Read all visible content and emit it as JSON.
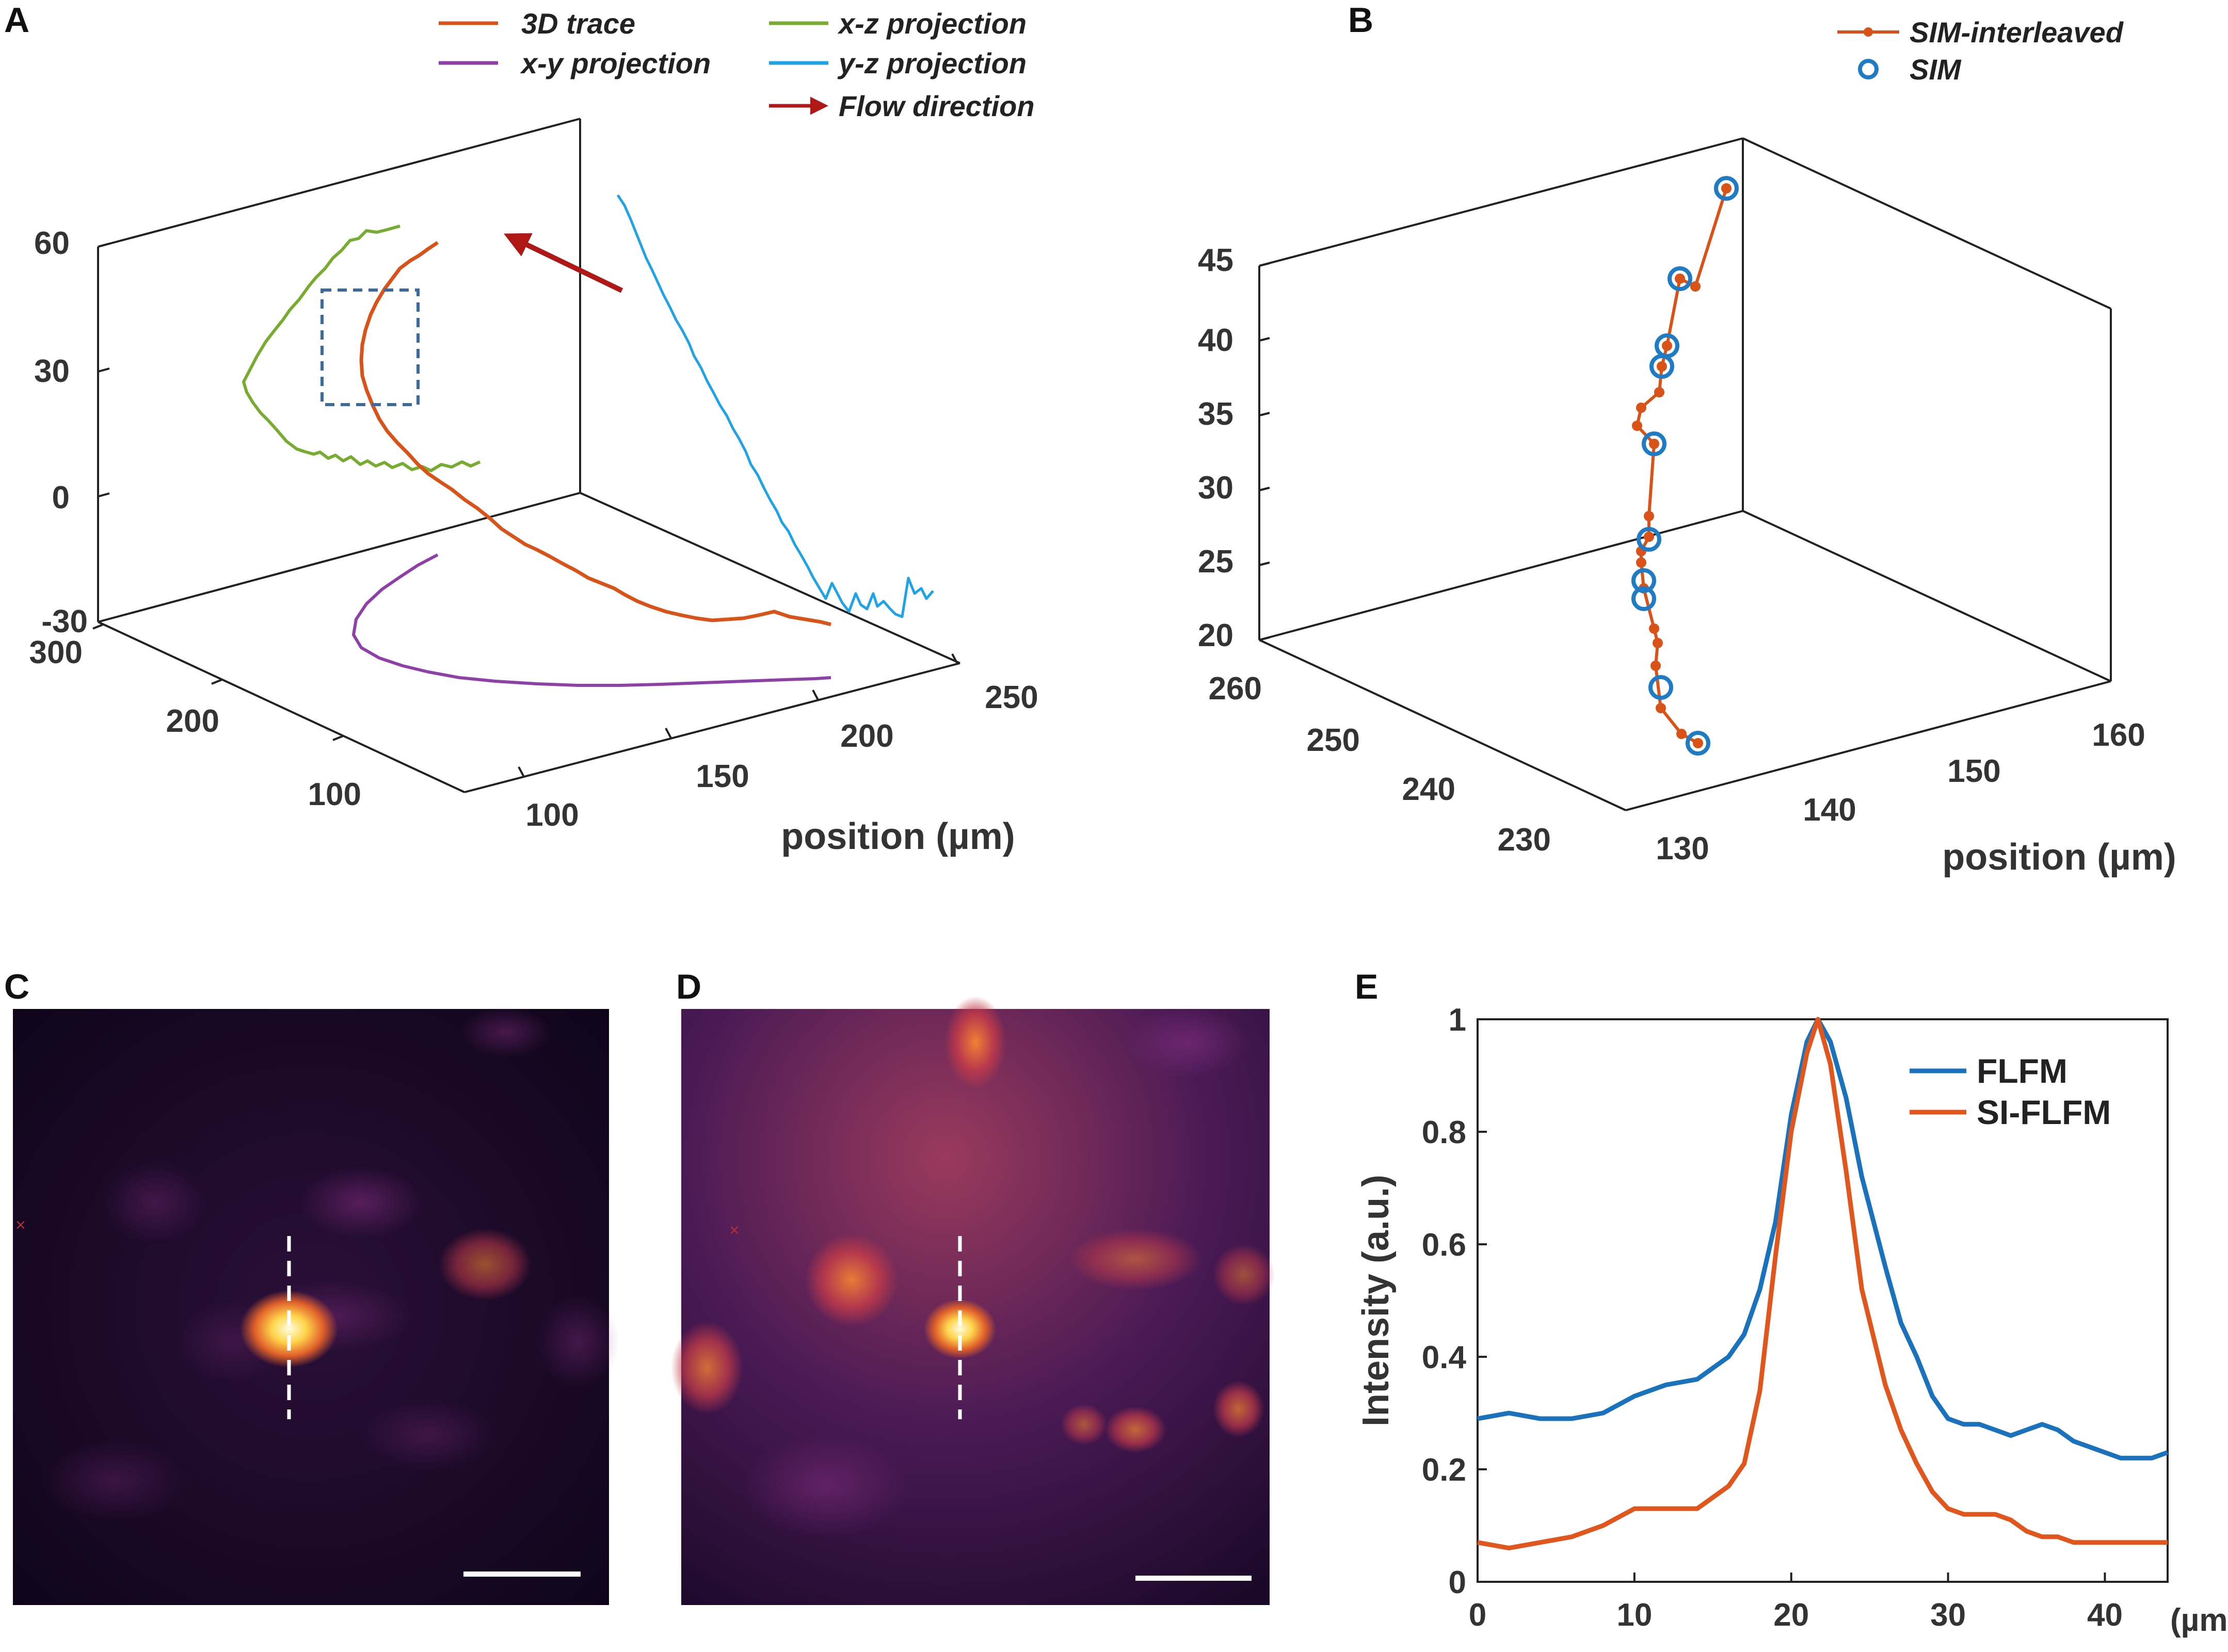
{
  "colors": {
    "trace3d": "#d95319",
    "xy": "#8e3fa8",
    "xz": "#77ac30",
    "yz": "#1ea3e6",
    "arrow": "#b01818",
    "sim_marker": "#1f7cc4",
    "flfm": "#1a72bd",
    "siflfm": "#e0561c",
    "roi_box": "#3a6aa0",
    "crosshair": "#ffffff"
  },
  "panels": {
    "a": {
      "letter": "A"
    },
    "b": {
      "letter": "B"
    },
    "c": {
      "letter": "C"
    },
    "d": {
      "letter": "D"
    },
    "e": {
      "letter": "E"
    }
  },
  "legend_a": {
    "trace3d": "3D trace",
    "xy": "x-y projection",
    "xz": "x-z projection",
    "yz": "y-z projection",
    "flow": "Flow direction"
  },
  "legend_b": {
    "sim_interleaved": "SIM-interleaved",
    "sim": "SIM"
  },
  "chart_data": [
    {
      "id": "A",
      "type": "line",
      "title": "",
      "zlabel": "",
      "xlabel": "position (µm)",
      "z_ticks": [
        "60",
        "30",
        "0",
        "-30"
      ],
      "depth_ticks": [
        "300",
        "200",
        "100"
      ],
      "x_ticks": [
        "100",
        "150",
        "200",
        "250"
      ],
      "zlim": [
        -30,
        60
      ],
      "series": [
        {
          "name": "3D trace"
        },
        {
          "name": "x-y projection"
        },
        {
          "name": "x-z projection"
        },
        {
          "name": "y-z projection"
        }
      ],
      "annotations": [
        "Flow direction"
      ]
    },
    {
      "id": "B",
      "type": "line",
      "xlabel": "position (µm)",
      "z_ticks": [
        "45",
        "40",
        "35",
        "30",
        "25",
        "20"
      ],
      "depth_ticks": [
        "260",
        "250",
        "240",
        "230"
      ],
      "x_ticks": [
        "130",
        "140",
        "150",
        "160"
      ],
      "zlim": [
        20,
        45
      ],
      "series": [
        {
          "name": "SIM-interleaved"
        },
        {
          "name": "SIM"
        }
      ]
    },
    {
      "id": "E",
      "type": "line",
      "xlabel": "(µm)",
      "ylabel": "Intensity (a.u.)",
      "x_ticks": [
        "0",
        "10",
        "20",
        "30",
        "40"
      ],
      "y_ticks": [
        "0",
        "0.2",
        "0.4",
        "0.6",
        "0.8",
        "1"
      ],
      "xlim": [
        0,
        44
      ],
      "ylim": [
        0,
        1
      ],
      "x": [
        0,
        2,
        4,
        6,
        8,
        10,
        12,
        14,
        16,
        17,
        18,
        19,
        20,
        21,
        21.7,
        22.5,
        23.5,
        24.5,
        26,
        27,
        28,
        29,
        30,
        31,
        32,
        33,
        34,
        35,
        36,
        37,
        38,
        39,
        40,
        41,
        42,
        43,
        44
      ],
      "series": [
        {
          "name": "FLFM",
          "values": [
            0.29,
            0.3,
            0.29,
            0.29,
            0.3,
            0.33,
            0.35,
            0.36,
            0.4,
            0.44,
            0.52,
            0.64,
            0.83,
            0.96,
            1.0,
            0.96,
            0.86,
            0.72,
            0.56,
            0.46,
            0.4,
            0.33,
            0.29,
            0.28,
            0.28,
            0.27,
            0.26,
            0.27,
            0.28,
            0.27,
            0.25,
            0.24,
            0.23,
            0.22,
            0.22,
            0.22,
            0.23
          ]
        },
        {
          "name": "SI-FLFM",
          "values": [
            0.07,
            0.06,
            0.07,
            0.08,
            0.1,
            0.13,
            0.13,
            0.13,
            0.17,
            0.21,
            0.34,
            0.58,
            0.8,
            0.94,
            1.0,
            0.92,
            0.73,
            0.52,
            0.35,
            0.27,
            0.21,
            0.16,
            0.13,
            0.12,
            0.12,
            0.12,
            0.11,
            0.09,
            0.08,
            0.08,
            0.07,
            0.07,
            0.07,
            0.07,
            0.07,
            0.07,
            0.07
          ]
        }
      ]
    }
  ]
}
